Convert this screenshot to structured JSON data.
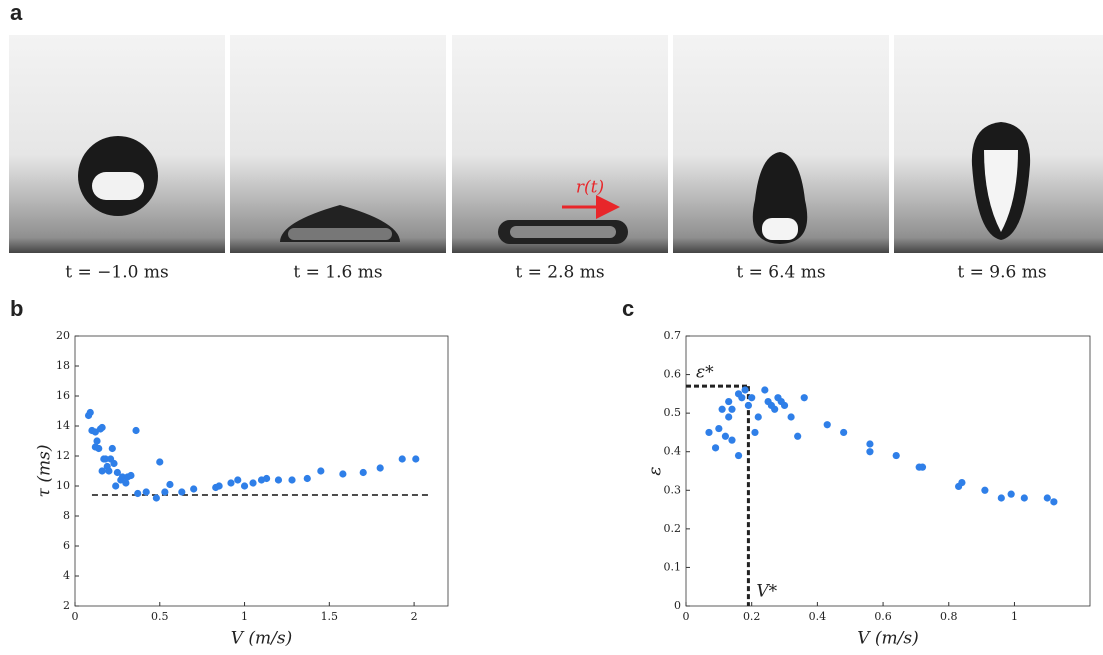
{
  "figure": {
    "panel_labels": [
      "a",
      "b",
      "c"
    ],
    "frames": [
      "t = −1.0 ms",
      "t = 1.6 ms",
      "t = 2.8 ms",
      "t = 6.4 ms",
      "t = 9.6 ms"
    ],
    "arrow_label": "r(t)"
  },
  "chart_data": [
    {
      "type": "scatter",
      "xlabel": "V (m/s)",
      "ylabel": "τ (ms)",
      "color": "#2f7fe8",
      "xlim": [
        0,
        2.2
      ],
      "ylim": [
        2,
        20
      ],
      "xticks": [
        0,
        0.5,
        1,
        1.5,
        2
      ],
      "yticks": [
        2,
        4,
        6,
        8,
        10,
        12,
        14,
        16,
        18,
        20
      ],
      "x": [
        0.08,
        0.09,
        0.1,
        0.12,
        0.12,
        0.13,
        0.14,
        0.15,
        0.16,
        0.16,
        0.17,
        0.18,
        0.19,
        0.2,
        0.21,
        0.22,
        0.23,
        0.24,
        0.25,
        0.27,
        0.28,
        0.3,
        0.31,
        0.33,
        0.36,
        0.37,
        0.42,
        0.48,
        0.5,
        0.53,
        0.56,
        0.63,
        0.7,
        0.83,
        0.85,
        0.92,
        0.96,
        1.0,
        1.05,
        1.1,
        1.13,
        1.2,
        1.28,
        1.37,
        1.45,
        1.58,
        1.7,
        1.8,
        1.93,
        2.01
      ],
      "values": [
        14.7,
        14.9,
        13.7,
        13.6,
        12.6,
        13.0,
        12.5,
        13.8,
        13.9,
        11.0,
        11.8,
        11.8,
        11.3,
        11.0,
        11.8,
        12.5,
        11.5,
        10.0,
        10.9,
        10.4,
        10.6,
        10.2,
        10.6,
        10.7,
        13.7,
        9.5,
        9.6,
        9.2,
        11.6,
        9.6,
        10.1,
        9.6,
        9.8,
        9.9,
        10.0,
        10.2,
        10.4,
        10.0,
        10.2,
        10.4,
        10.5,
        10.4,
        10.4,
        10.5,
        11.0,
        10.8,
        10.9,
        11.2,
        11.8,
        11.8
      ],
      "hline": {
        "y": 9.4,
        "xstart": 0.1,
        "xend": 2.1
      }
    },
    {
      "type": "scatter",
      "xlabel": "V (m/s)",
      "ylabel": "ε",
      "color": "#2f7fe8",
      "xlim": [
        0,
        1.23
      ],
      "ylim": [
        0,
        0.7
      ],
      "xticks": [
        0,
        0.2,
        0.4,
        0.6,
        0.8,
        1
      ],
      "yticks": [
        0,
        0.1,
        0.2,
        0.3,
        0.4,
        0.5,
        0.6,
        0.7
      ],
      "x": [
        0.07,
        0.09,
        0.1,
        0.11,
        0.12,
        0.13,
        0.13,
        0.14,
        0.14,
        0.16,
        0.16,
        0.17,
        0.18,
        0.19,
        0.2,
        0.21,
        0.22,
        0.24,
        0.25,
        0.26,
        0.27,
        0.28,
        0.29,
        0.3,
        0.32,
        0.34,
        0.36,
        0.43,
        0.48,
        0.56,
        0.56,
        0.64,
        0.71,
        0.72,
        0.83,
        0.84,
        0.91,
        0.96,
        0.99,
        1.03,
        1.1,
        1.12
      ],
      "values": [
        0.45,
        0.41,
        0.46,
        0.51,
        0.44,
        0.53,
        0.49,
        0.51,
        0.43,
        0.39,
        0.55,
        0.54,
        0.56,
        0.52,
        0.54,
        0.45,
        0.49,
        0.56,
        0.53,
        0.52,
        0.51,
        0.54,
        0.53,
        0.52,
        0.49,
        0.44,
        0.54,
        0.47,
        0.45,
        0.4,
        0.42,
        0.39,
        0.36,
        0.36,
        0.31,
        0.32,
        0.3,
        0.28,
        0.29,
        0.28,
        0.28,
        0.27
      ],
      "reference": {
        "x": 0.19,
        "y": 0.57,
        "x_label": "V*",
        "y_label": "ε*"
      }
    }
  ]
}
